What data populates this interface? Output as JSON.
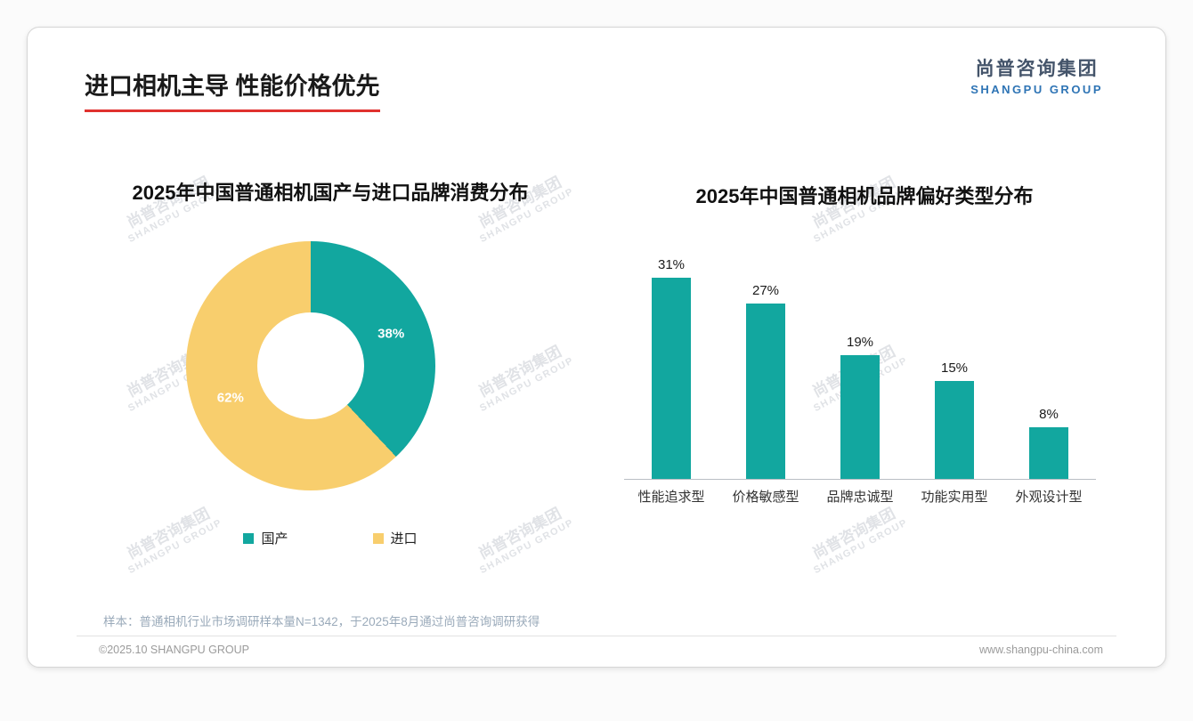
{
  "slide": {
    "title": "进口相机主导 性能价格优先",
    "logo": {
      "cn": "尚普咨询集团",
      "en": "SHANGPU GROUP"
    },
    "watermark": {
      "cn": "尚普咨询集团",
      "en": "SHANGPU GROUP"
    },
    "footnote": "样本：普通相机行业市场调研样本量N=1342，于2025年8月通过尚普咨询调研获得",
    "footer_left": "©2025.10 SHANGPU GROUP",
    "footer_right": "www.shangpu-china.com"
  },
  "colors": {
    "teal": "#12a79f",
    "yellow": "#f8ce6d",
    "accent_red": "#e0312e",
    "logo_blue": "#2e74b5"
  },
  "chart_data": [
    {
      "type": "pie",
      "donut": true,
      "title": "2025年中国普通相机国产与进口品牌消费分布",
      "labels": [
        "国产",
        "进口"
      ],
      "values": [
        38,
        62
      ],
      "unit": "%",
      "colors": [
        "#12a79f",
        "#f8ce6d"
      ],
      "legend_position": "bottom"
    },
    {
      "type": "bar",
      "title": "2025年中国普通相机品牌偏好类型分布",
      "categories": [
        "性能追求型",
        "价格敏感型",
        "品牌忠诚型",
        "功能实用型",
        "外观设计型"
      ],
      "values": [
        31,
        27,
        19,
        15,
        8
      ],
      "unit": "%",
      "ylim": [
        0,
        35
      ],
      "bar_color": "#12a79f",
      "grid": false,
      "legend_position": "none"
    }
  ]
}
